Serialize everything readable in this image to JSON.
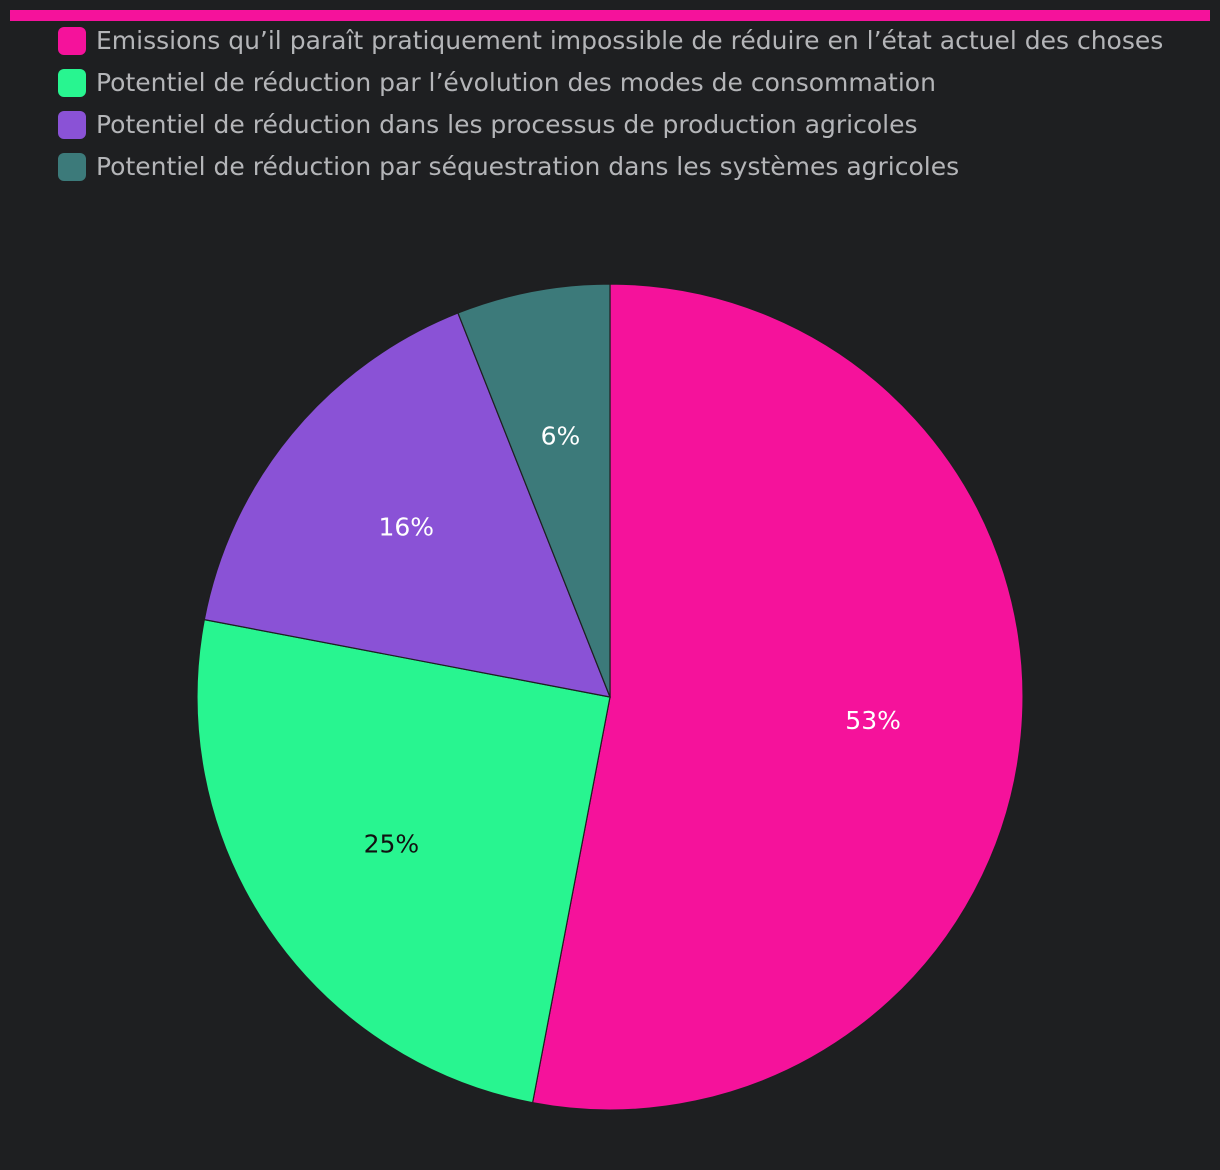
{
  "chart_data": {
    "type": "pie",
    "categories": [
      "Emissions qu’il paraît pratiquement impossible de réduire en l’état actuel des choses",
      "Potentiel de réduction par l’évolution des modes de consommation",
      "Potentiel de réduction dans les processus de production agricoles",
      "Potentiel de réduction par séquestration dans les systèmes agricoles"
    ],
    "values": [
      53,
      25,
      16,
      6
    ],
    "value_labels": [
      "53%",
      "25%",
      "16%",
      "6%"
    ],
    "colors": [
      "#f5129b",
      "#28f590",
      "#8a52d6",
      "#3c7a7a"
    ],
    "label_colors": [
      "#ffffff",
      "#111111",
      "#ffffff",
      "#ffffff"
    ],
    "legend_position": "top-left",
    "start_angle": "12 o'clock",
    "direction": "clockwise"
  }
}
